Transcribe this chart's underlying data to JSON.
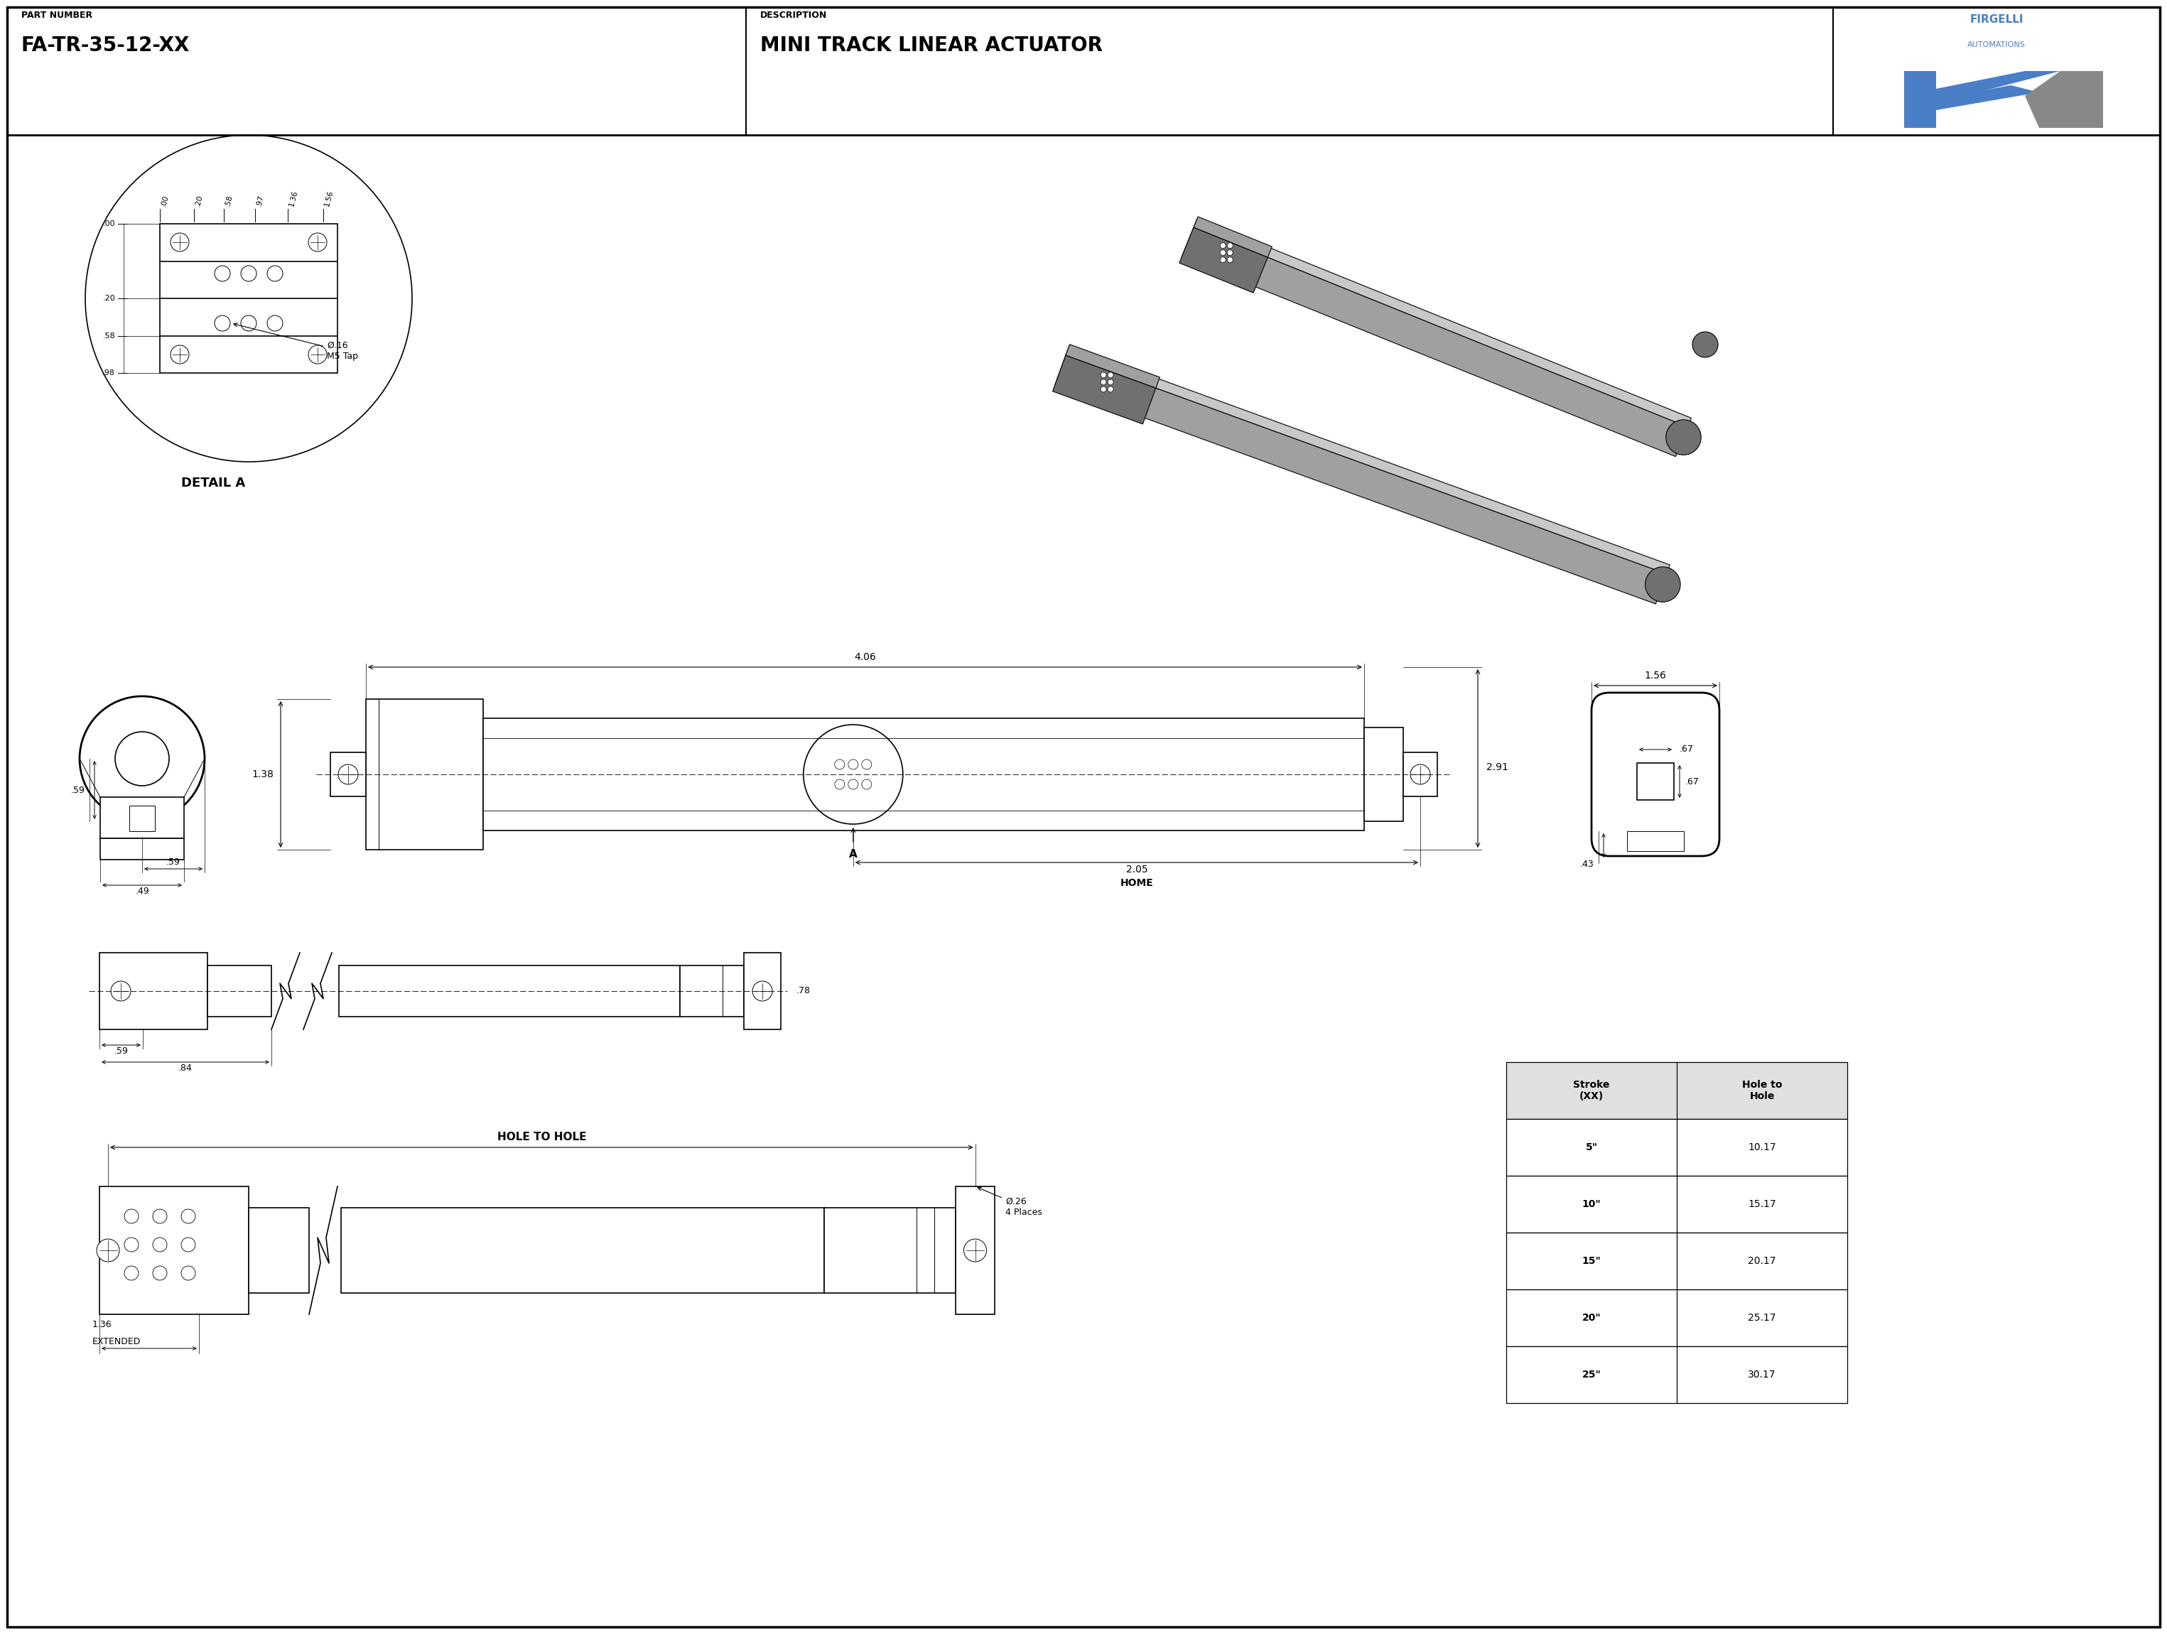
{
  "bg_color": "#ffffff",
  "line_color": "#000000",
  "part_number": "FA-TR-35-12-XX",
  "description": "MINI TRACK LINEAR ACTUATOR",
  "part_number_label": "PART NUMBER",
  "description_label": "DESCRIPTION",
  "detail_a_label": "DETAIL A",
  "table_headers": [
    "Stroke\n(XX)",
    "Hole to\nHole"
  ],
  "table_rows": [
    [
      "5\"",
      "10.17"
    ],
    [
      "10\"",
      "15.17"
    ],
    [
      "15\"",
      "20.17"
    ],
    [
      "20\"",
      "25.17"
    ],
    [
      "25\"",
      "30.17"
    ]
  ],
  "firgelli_text": "FIRGELLI",
  "automations_text": "AUTOMATIONS",
  "dim_406": "4.06",
  "dim_291": "2.91",
  "dim_205": "2.05",
  "dim_home": "HOME",
  "dim_138": "1.38",
  "dim_059a": ".59",
  "dim_059b": ".59",
  "dim_049": ".49",
  "dim_156": "1.56",
  "dim_067a": ".67",
  "dim_067b": ".67",
  "dim_043": ".43",
  "dim_059c": ".59",
  "dim_078": ".78",
  "dim_084": ".84",
  "dim_136_ext": "1.36\nEXTENDED",
  "dim_hole_to_hole": "HOLE TO HOLE",
  "dim_026": "Ø.26\n4 Places",
  "detail_016": "Ø.16\nM5 Tap",
  "detail_left_dims": [
    ".00",
    ".20",
    ".58",
    ".98"
  ],
  "detail_top_dims": [
    ".00",
    ".20",
    ".58",
    ".97",
    "1.36",
    "1.56"
  ],
  "label_A": "A",
  "gray_3d_light": "#c8c8c8",
  "gray_3d_mid": "#a0a0a0",
  "gray_3d_dark": "#707070",
  "blue_firgelli": "#4a7ec7"
}
